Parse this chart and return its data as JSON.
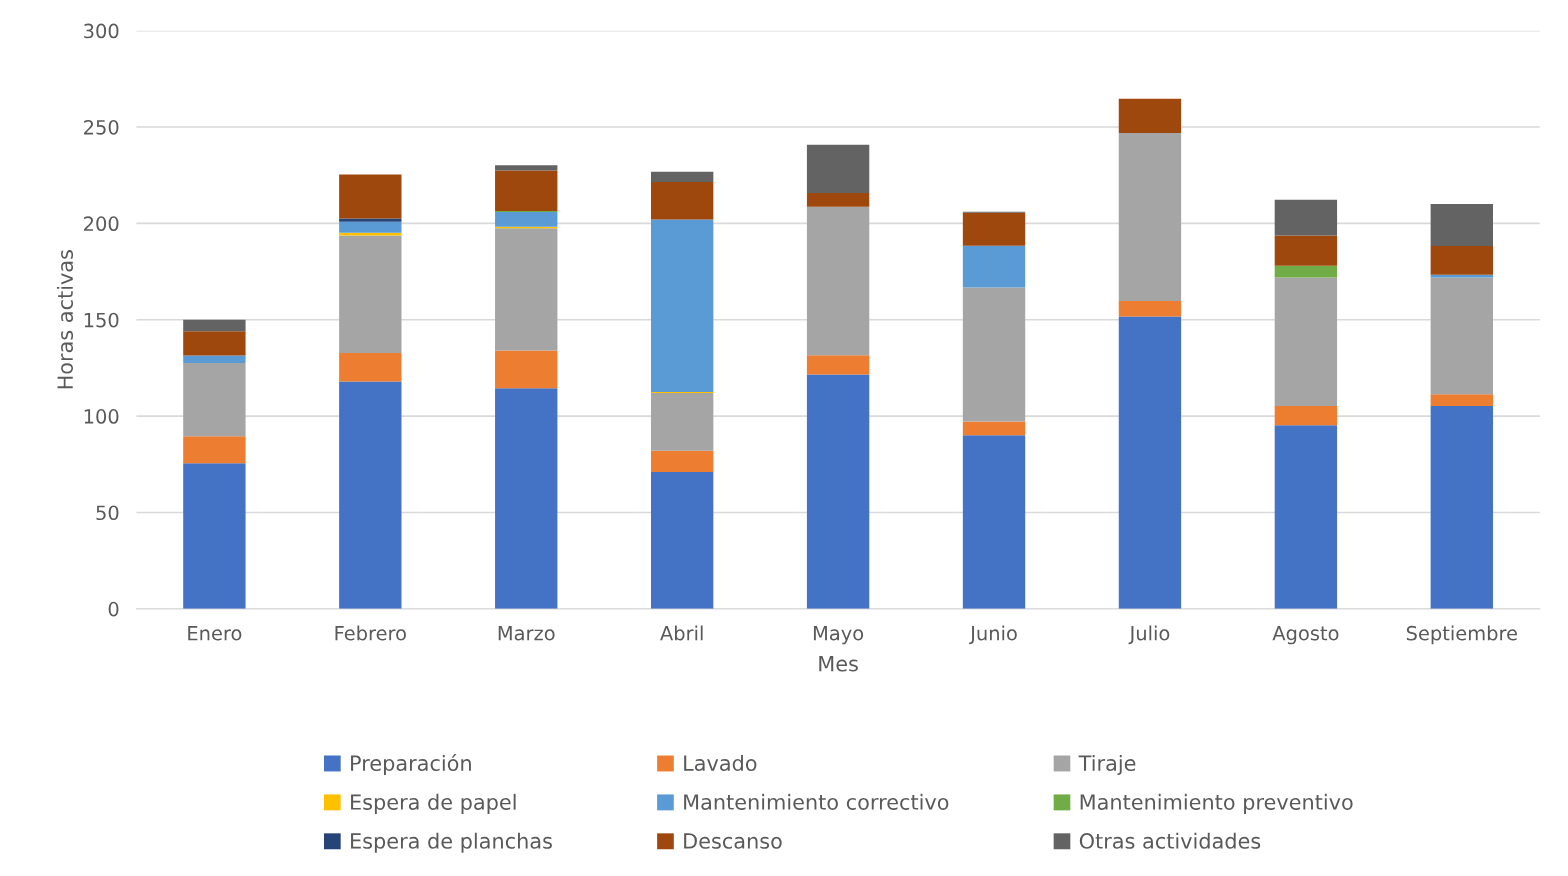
{
  "chart_data": {
    "type": "bar",
    "stacked": true,
    "xlabel": "Mes",
    "ylabel": "Horas activas",
    "categories": [
      "Enero",
      "Febrero",
      "Marzo",
      "Abril",
      "Mayo",
      "Junio",
      "Julio",
      "Agosto",
      "Septiembre"
    ],
    "ylim": [
      0,
      300
    ],
    "yticks": [
      0,
      50,
      100,
      150,
      200,
      250,
      300
    ],
    "grid": "y",
    "legend": "bottom",
    "series": [
      {
        "name": "Preparación",
        "color": "#4472c4",
        "values": [
          75.5,
          118,
          114.5,
          71,
          121.6,
          90,
          151.7,
          95.3,
          105.2
        ]
      },
      {
        "name": "Lavado",
        "color": "#ed7d31",
        "values": [
          14,
          14.7,
          19.5,
          11,
          10,
          7.2,
          8,
          9.9,
          6.2
        ]
      },
      {
        "name": "Tiraje",
        "color": "#a5a5a5",
        "values": [
          38,
          61,
          63.5,
          30,
          77,
          69.5,
          87.2,
          66.7,
          60.5
        ]
      },
      {
        "name": "Espera de papel",
        "color": "#ffc000",
        "values": [
          0,
          1.5,
          0.7,
          0.5,
          0,
          0,
          0,
          0,
          0
        ]
      },
      {
        "name": "Mantenimiento correctivo",
        "color": "#5b9bd5",
        "values": [
          4,
          5.7,
          7.7,
          89.5,
          0,
          21.7,
          0,
          0,
          1.4
        ]
      },
      {
        "name": "Mantenimiento preventivo",
        "color": "#70ad47",
        "values": [
          0,
          0,
          0.5,
          0,
          0,
          0,
          0,
          6.1,
          0
        ]
      },
      {
        "name": "Espera de planchas",
        "color": "#264478",
        "values": [
          0,
          1.6,
          0,
          0,
          0,
          0,
          0,
          0,
          0
        ]
      },
      {
        "name": "Descanso",
        "color": "#9e480e",
        "values": [
          12.5,
          22.8,
          21,
          19.5,
          7.2,
          17.1,
          17.8,
          15.7,
          14.9
        ]
      },
      {
        "name": "Otras actividades",
        "color": "#636363",
        "values": [
          6,
          0,
          2.7,
          5.3,
          25,
          0.5,
          0,
          18.5,
          21.8
        ]
      }
    ]
  }
}
